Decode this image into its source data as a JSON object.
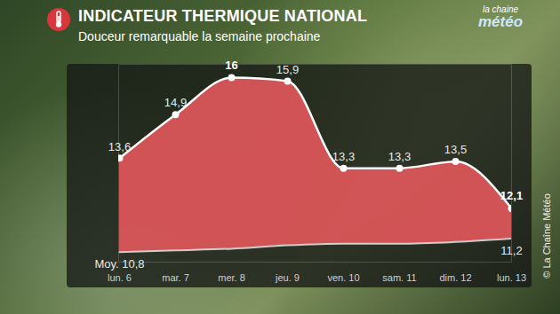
{
  "chart_data": {
    "type": "area",
    "title": "INDICATEUR THERMIQUE NATIONAL",
    "subtitle": "Douceur remarquable la semaine prochaine",
    "annotations": [
      "la chaine",
      "météo",
      "© La Chaîne Météo"
    ],
    "categories": [
      "lun. 6",
      "mar. 7",
      "mer. 8",
      "jeu. 9",
      "ven. 10",
      "sam. 11",
      "dim. 12",
      "lun. 13"
    ],
    "series": [
      {
        "color": "#e0575a",
        "values": [
          13.6,
          14.9,
          16,
          15.9,
          13.3,
          13.3,
          13.5,
          12.1
        ],
        "value_labels": [
          "13,6",
          "14,9",
          "16",
          "15,9",
          "13,3",
          "13,3",
          "13,5",
          "12,1"
        ]
      },
      {
        "color": "#f2f2f2",
        "values": [
          10.8,
          10.85,
          10.9,
          11.0,
          11.05,
          11.05,
          11.1,
          11.2
        ],
        "value_labels": [
          "Moy. 10,8",
          null,
          null,
          null,
          null,
          null,
          null,
          "11,2"
        ]
      }
    ],
    "ylim": [
      10.5,
      16.4
    ],
    "yticks": [],
    "tick_labels": "x",
    "data_labels": true
  }
}
